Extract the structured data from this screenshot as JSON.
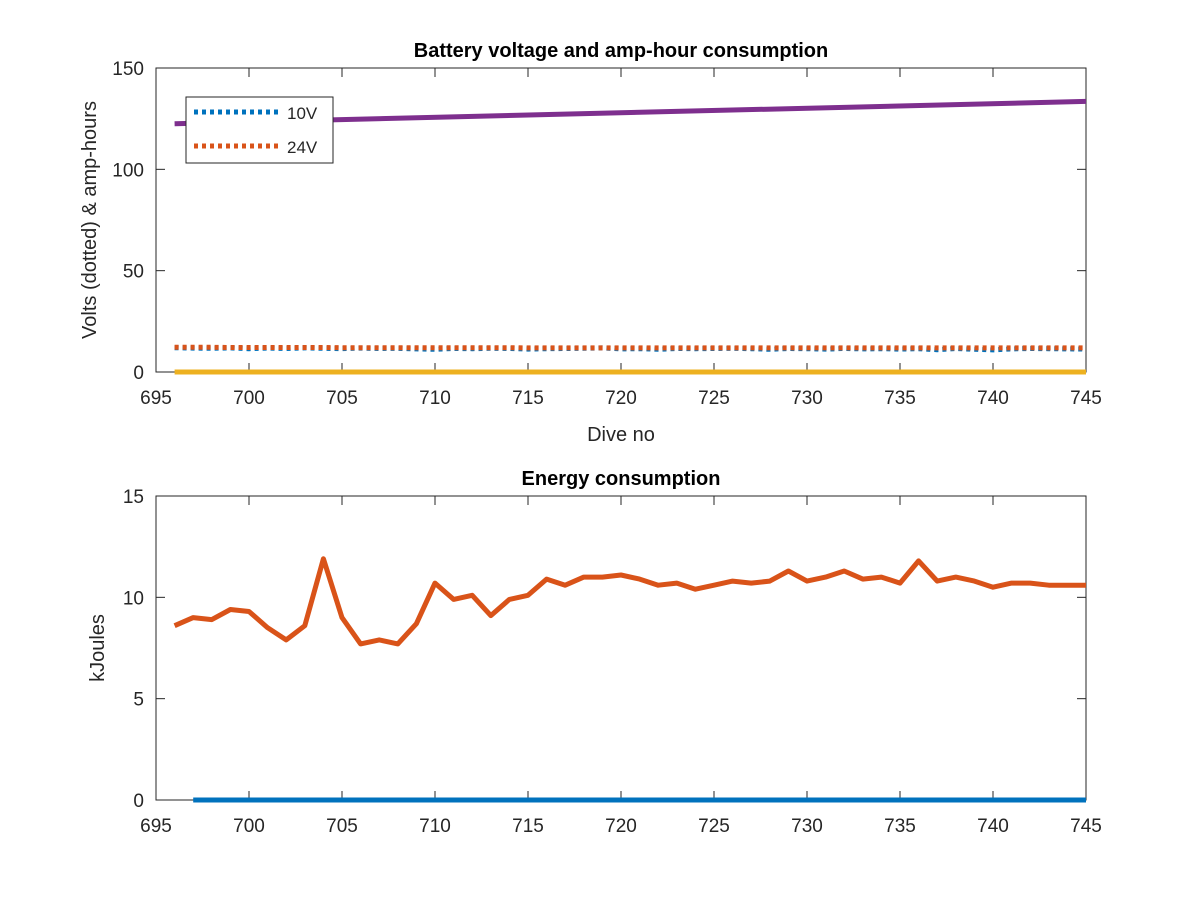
{
  "colors": {
    "blue": "#0072bd",
    "orange": "#d95319",
    "yellow": "#edb120",
    "purple": "#7e2f8e",
    "axis": "#262626"
  },
  "chart_data": [
    {
      "type": "line",
      "title": "Battery voltage and amp-hour consumption",
      "xlabel": "Dive no",
      "ylabel": "Volts (dotted) & amp-hours",
      "xlim": [
        695,
        745
      ],
      "ylim": [
        0,
        150
      ],
      "xticks": [
        "695",
        "700",
        "705",
        "710",
        "715",
        "720",
        "725",
        "730",
        "735",
        "740",
        "745"
      ],
      "yticks": [
        "0",
        "50",
        "100",
        "150"
      ],
      "legend_position": "top-left",
      "series": [
        {
          "name": "10V",
          "style": "dotted",
          "color": "blue",
          "legend": true,
          "x": [
            696,
            697,
            698,
            699,
            700,
            701,
            702,
            703,
            704,
            705,
            706,
            707,
            708,
            709,
            710,
            711,
            712,
            713,
            714,
            715,
            716,
            717,
            718,
            719,
            720,
            721,
            722,
            723,
            724,
            725,
            726,
            727,
            728,
            729,
            730,
            731,
            732,
            733,
            734,
            735,
            736,
            737,
            738,
            739,
            740,
            741,
            742,
            743,
            744,
            745
          ],
          "values": [
            12.0,
            11.8,
            11.7,
            11.9,
            11.5,
            11.8,
            11.6,
            11.9,
            11.7,
            11.5,
            11.8,
            11.6,
            11.7,
            11.4,
            11.2,
            11.6,
            11.5,
            11.7,
            11.6,
            11.3,
            11.5,
            11.6,
            11.7,
            11.9,
            11.4,
            11.5,
            11.2,
            11.6,
            11.5,
            11.6,
            11.7,
            11.5,
            11.2,
            11.6,
            11.5,
            11.3,
            11.6,
            11.4,
            11.5,
            11.3,
            11.5,
            11.0,
            11.6,
            11.2,
            10.9,
            11.4,
            11.6,
            11.5,
            11.4,
            11.3
          ]
        },
        {
          "name": "24V",
          "style": "dotted",
          "color": "orange",
          "legend": true,
          "x": [
            696,
            697,
            698,
            699,
            700,
            701,
            702,
            703,
            704,
            705,
            706,
            707,
            708,
            709,
            710,
            711,
            712,
            713,
            714,
            715,
            716,
            717,
            718,
            719,
            720,
            721,
            722,
            723,
            724,
            725,
            726,
            727,
            728,
            729,
            730,
            731,
            732,
            733,
            734,
            735,
            736,
            737,
            738,
            739,
            740,
            741,
            742,
            743,
            744,
            745
          ],
          "values": [
            12.2,
            12.2,
            12.2,
            12.1,
            12.1,
            12.1,
            12.1,
            12.1,
            12.1,
            12.0,
            12.0,
            12.0,
            12.0,
            12.0,
            12.0,
            12.0,
            12.0,
            12.0,
            12.0,
            11.9,
            11.9,
            11.9,
            11.9,
            11.9,
            11.9,
            11.9,
            11.9,
            11.9,
            11.9,
            11.9,
            11.9,
            11.9,
            11.9,
            11.9,
            11.9,
            11.9,
            11.9,
            11.9,
            11.9,
            11.9,
            11.9,
            11.9,
            11.9,
            11.9,
            11.9,
            11.9,
            11.9,
            11.9,
            11.9,
            11.9
          ]
        },
        {
          "style": "solid",
          "color": "yellow",
          "legend": false,
          "x": [
            696,
            745
          ],
          "values": [
            0,
            0
          ]
        },
        {
          "style": "solid",
          "color": "purple",
          "legend": false,
          "x": [
            696,
            745
          ],
          "values": [
            122.5,
            133.5
          ]
        }
      ]
    },
    {
      "type": "line",
      "title": "Energy consumption",
      "xlabel": "",
      "ylabel": "kJoules",
      "xlim": [
        695,
        745
      ],
      "ylim": [
        0,
        15
      ],
      "xticks": [
        "695",
        "700",
        "705",
        "710",
        "715",
        "720",
        "725",
        "730",
        "735",
        "740",
        "745"
      ],
      "yticks": [
        "0",
        "5",
        "10",
        "15"
      ],
      "series": [
        {
          "style": "solid",
          "color": "orange",
          "x": [
            696,
            697,
            698,
            699,
            700,
            701,
            702,
            703,
            704,
            705,
            706,
            707,
            708,
            709,
            710,
            711,
            712,
            713,
            714,
            715,
            716,
            717,
            718,
            719,
            720,
            721,
            722,
            723,
            724,
            725,
            726,
            727,
            728,
            729,
            730,
            731,
            732,
            733,
            734,
            735,
            736,
            737,
            738,
            739,
            740,
            741,
            742,
            743,
            744,
            745
          ],
          "values": [
            8.6,
            9.0,
            8.9,
            9.4,
            9.3,
            8.5,
            7.9,
            8.6,
            11.9,
            9.0,
            7.7,
            7.9,
            7.7,
            8.7,
            10.7,
            9.9,
            10.1,
            9.1,
            9.9,
            10.1,
            10.9,
            10.6,
            11.0,
            11.0,
            11.1,
            10.9,
            10.6,
            10.7,
            10.4,
            10.6,
            10.8,
            10.7,
            10.8,
            11.3,
            10.8,
            11.0,
            11.3,
            10.9,
            11.0,
            10.7,
            11.8,
            10.8,
            11.0,
            10.8,
            10.5,
            10.7,
            10.7,
            10.6,
            10.6,
            10.6
          ]
        },
        {
          "style": "solid",
          "color": "blue",
          "x": [
            697,
            745
          ],
          "values": [
            0,
            0
          ]
        }
      ]
    }
  ]
}
